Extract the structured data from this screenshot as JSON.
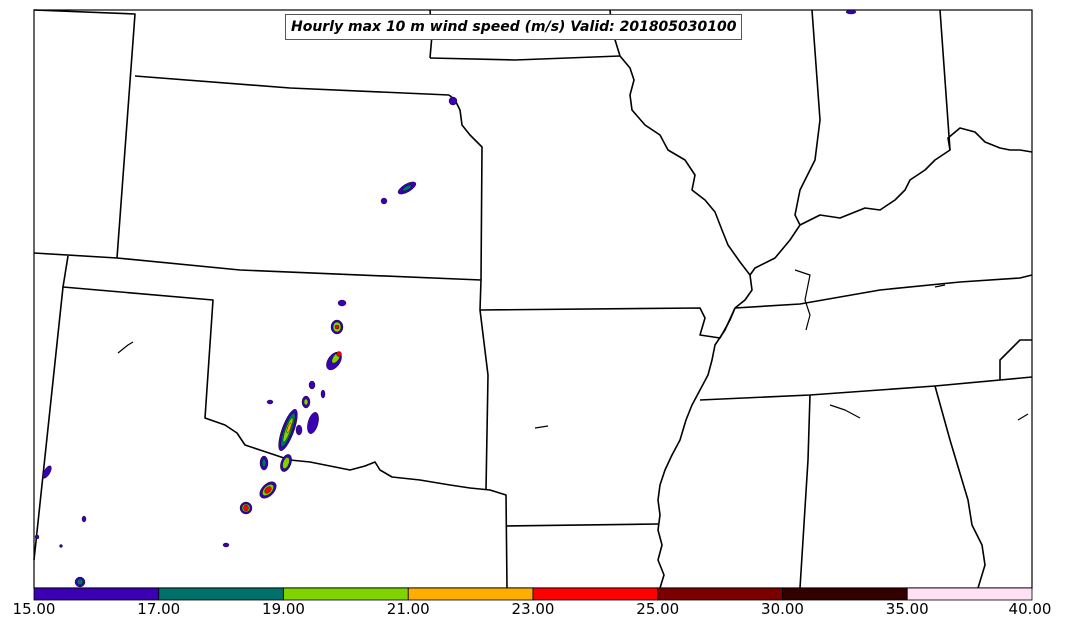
{
  "title": "Hourly max 10 m wind speed (m/s) Valid: 201805030100",
  "colorbar": {
    "bins": [
      {
        "from": "15.00",
        "to": "17.00",
        "color": "#3c00b4"
      },
      {
        "from": "17.00",
        "to": "19.00",
        "color": "#00706a"
      },
      {
        "from": "19.00",
        "to": "21.00",
        "color": "#7fd400"
      },
      {
        "from": "21.00",
        "to": "23.00",
        "color": "#ffae00"
      },
      {
        "from": "23.00",
        "to": "25.00",
        "color": "#ff0000"
      },
      {
        "from": "25.00",
        "to": "30.00",
        "color": "#7a0000"
      },
      {
        "from": "30.00",
        "to": "35.00",
        "color": "#330000"
      },
      {
        "from": "35.00",
        "to": "40.00",
        "color": "#ffe0f5"
      }
    ],
    "tick_labels": [
      "15.00",
      "17.00",
      "19.00",
      "21.00",
      "23.00",
      "25.00",
      "30.00",
      "35.00",
      "40.00"
    ]
  },
  "colors": {
    "boundary": "#000000",
    "background": "#ffffff"
  }
}
